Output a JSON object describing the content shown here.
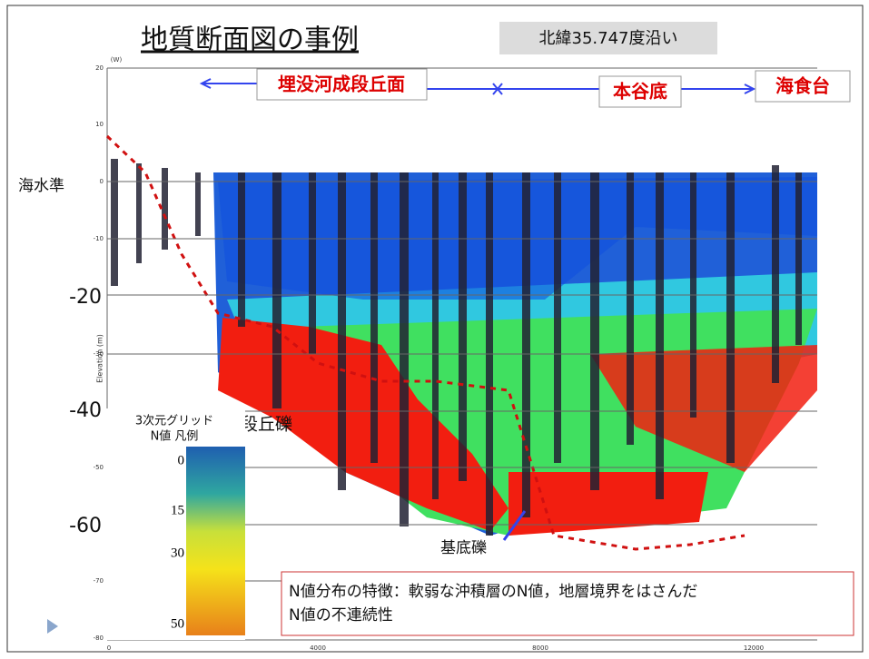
{
  "header": {
    "title": "地質断面図の事例",
    "subtitle": "北緯35.747度沿い"
  },
  "zones": [
    "埋没河成段丘面",
    "本谷底",
    "海食台"
  ],
  "left_labels": [
    "海水準",
    "-20",
    "-40",
    "-60"
  ],
  "annotations": {
    "terrace_gravel": "段丘礫",
    "basal_gravel": "基底礫"
  },
  "section": {
    "unit": "(W)",
    "y_axis_title": "Elevation (m)",
    "y_ticks": [
      "20",
      "10",
      "0",
      "-10",
      "-30",
      "-50",
      "-70",
      "-80"
    ],
    "x_ticks": [
      "0",
      "4000",
      "8000",
      "12000"
    ]
  },
  "legend": {
    "title_lines": [
      "3次元グリッド",
      "N値 凡例"
    ],
    "ticks": [
      "0",
      "15",
      "30",
      "50"
    ]
  },
  "note": {
    "lines": [
      "N値分布の特徴：軟弱な沖積層のN値，地層境界をはさんだ",
      "N値の不連続性"
    ]
  }
}
